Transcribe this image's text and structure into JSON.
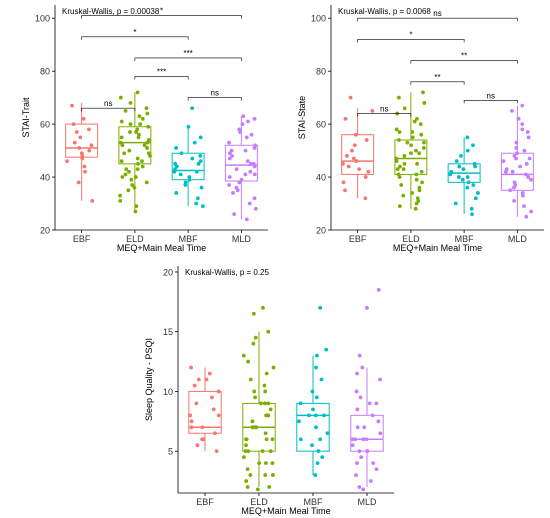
{
  "chart_data": [
    {
      "type": "box",
      "panel": "top-left",
      "annotation": "Kruskal-Wallis, p = 0.00038",
      "xlabel": "MEQ+Main Meal Time",
      "ylabel": "STAI-Trait",
      "categories": [
        "EBF",
        "ELD",
        "MBF",
        "MLD"
      ],
      "colors": [
        "#f8766d",
        "#7cae00",
        "#00bfc4",
        "#c77cff"
      ],
      "ylim": [
        20,
        105
      ],
      "yticks": [
        20,
        40,
        60,
        80,
        100
      ],
      "boxes": [
        {
          "min": 31,
          "q1": 47.5,
          "median": 51,
          "q3": 60,
          "max": 68
        },
        {
          "min": 27,
          "q1": 45,
          "median": 53,
          "q3": 59,
          "max": 72
        },
        {
          "min": 29,
          "q1": 39,
          "median": 42.5,
          "q3": 49,
          "max": 59
        },
        {
          "min": 24,
          "q1": 38.5,
          "median": 44.5,
          "q3": 52,
          "max": 63
        }
      ],
      "points": [
        [
          67,
          58,
          62,
          55,
          53,
          52,
          50,
          49,
          48,
          47,
          46,
          44,
          42,
          38,
          31,
          57,
          51,
          60
        ],
        [
          72,
          70,
          68,
          66,
          65,
          64,
          63,
          62,
          61,
          60,
          59,
          58,
          57,
          56,
          55,
          54,
          53,
          53,
          52,
          51,
          50,
          49,
          48,
          47,
          46,
          45,
          44,
          43,
          42,
          41,
          40,
          39,
          38,
          37,
          35,
          33,
          31,
          29,
          27,
          60,
          57,
          55,
          52,
          49,
          46,
          43,
          40,
          36
        ],
        [
          66,
          59,
          55,
          53,
          51,
          49,
          48,
          47,
          46,
          45,
          44,
          43,
          42,
          41,
          40,
          39,
          38,
          37,
          36,
          34,
          32,
          30,
          29,
          42,
          45
        ],
        [
          63,
          62,
          61,
          60,
          58,
          56,
          55,
          53,
          52,
          51,
          50,
          49,
          48,
          47,
          46,
          45,
          44,
          43,
          42,
          41,
          40,
          39,
          38,
          37,
          36,
          35,
          34,
          32,
          30,
          28,
          26,
          24,
          57,
          50,
          45,
          41
        ]
      ],
      "significance": [
        {
          "from": 0,
          "to": 1,
          "label": "ns",
          "y": 66
        },
        {
          "from": 0,
          "to": 3,
          "label": "*",
          "y": 101
        },
        {
          "from": 0,
          "to": 2,
          "label": "*",
          "y": 93
        },
        {
          "from": 1,
          "to": 3,
          "label": "***",
          "y": 85
        },
        {
          "from": 1,
          "to": 2,
          "label": "***",
          "y": 78
        },
        {
          "from": 2,
          "to": 3,
          "label": "ns",
          "y": 70
        }
      ]
    },
    {
      "type": "box",
      "panel": "top-right",
      "annotation": "Kruskal-Wallis, p = 0.0068",
      "xlabel": "MEQ+Main Meal Time",
      "ylabel": "STAI-State",
      "categories": [
        "EBF",
        "ELD",
        "MBF",
        "MLD"
      ],
      "colors": [
        "#f8766d",
        "#7cae00",
        "#00bfc4",
        "#c77cff"
      ],
      "ylim": [
        20,
        105
      ],
      "yticks": [
        20,
        40,
        60,
        80,
        100
      ],
      "boxes": [
        {
          "min": 32,
          "q1": 41,
          "median": 46,
          "q3": 56,
          "max": 66
        },
        {
          "min": 28,
          "q1": 41,
          "median": 47,
          "q3": 54,
          "max": 72
        },
        {
          "min": 26,
          "q1": 38,
          "median": 41.5,
          "q3": 45,
          "max": 55
        },
        {
          "min": 25,
          "q1": 35,
          "median": 41,
          "q3": 49,
          "max": 67
        }
      ],
      "points": [
        [
          70,
          65,
          62,
          56,
          54,
          52,
          50,
          48,
          47,
          46,
          45,
          44,
          43,
          42,
          40,
          38,
          35,
          32
        ],
        [
          72,
          70,
          68,
          66,
          64,
          62,
          60,
          58,
          57,
          56,
          55,
          54,
          53,
          52,
          51,
          50,
          49,
          48,
          47,
          46,
          45,
          44,
          43,
          42,
          41,
          40,
          39,
          38,
          37,
          36,
          35,
          34,
          33,
          32,
          31,
          30,
          29,
          28,
          61,
          57,
          53,
          49,
          45,
          43,
          41
        ],
        [
          55,
          52,
          50,
          48,
          46,
          45,
          44,
          43,
          42,
          41,
          40,
          39,
          38,
          37,
          36,
          34,
          32,
          30,
          28,
          26,
          44,
          40
        ],
        [
          67,
          65,
          62,
          60,
          57,
          55,
          53,
          51,
          50,
          49,
          48,
          47,
          46,
          45,
          44,
          43,
          42,
          41,
          40,
          39,
          38,
          37,
          36,
          35,
          34,
          33,
          31,
          29,
          27,
          25,
          58,
          47,
          42
        ]
      ],
      "significance": [
        {
          "from": 0,
          "to": 1,
          "label": "ns",
          "y": 64
        },
        {
          "from": 0,
          "to": 3,
          "label": "ns",
          "y": 100
        },
        {
          "from": 0,
          "to": 2,
          "label": "*",
          "y": 92
        },
        {
          "from": 1,
          "to": 3,
          "label": "**",
          "y": 84
        },
        {
          "from": 1,
          "to": 2,
          "label": "**",
          "y": 76
        },
        {
          "from": 2,
          "to": 3,
          "label": "ns",
          "y": 69
        }
      ]
    },
    {
      "type": "box",
      "panel": "bottom",
      "annotation": "Kruskal-Wallis, p = 0.25",
      "xlabel": "MEQ+Main Meal Time",
      "ylabel": "Sleep Quality - PSQI",
      "categories": [
        "EBF",
        "ELD",
        "MBF",
        "MLD"
      ],
      "colors": [
        "#f8766d",
        "#7cae00",
        "#00bfc4",
        "#c77cff"
      ],
      "ylim": [
        1.5,
        20.5
      ],
      "yticks": [
        5,
        10,
        15,
        20
      ],
      "boxes": [
        {
          "min": 5,
          "q1": 6.5,
          "median": 7,
          "q3": 10,
          "max": 12
        },
        {
          "min": 2,
          "q1": 5,
          "median": 7,
          "q3": 9,
          "max": 15
        },
        {
          "min": 3,
          "q1": 5,
          "median": 8,
          "q3": 9,
          "max": 13
        },
        {
          "min": 2,
          "q1": 5,
          "median": 6,
          "q3": 8,
          "max": 12
        }
      ],
      "points": [
        [
          12,
          11.5,
          11,
          10.5,
          10,
          9.5,
          9,
          8.5,
          8,
          7.5,
          7,
          7,
          6.5,
          6,
          6,
          5.5,
          5,
          11,
          8
        ],
        [
          17,
          16.5,
          15,
          14.5,
          14,
          13,
          12.5,
          12,
          11.5,
          11,
          10.5,
          10,
          9.5,
          9,
          9,
          8.5,
          8,
          8,
          7.5,
          7,
          7,
          7,
          6.5,
          6,
          6,
          6,
          5.5,
          5,
          5,
          5,
          4.5,
          4,
          4,
          3.5,
          3,
          3,
          2.5,
          2,
          2,
          1.8,
          10,
          9,
          8,
          7,
          6,
          5,
          4,
          3
        ],
        [
          17,
          13.5,
          13,
          12,
          11,
          10,
          9.5,
          9,
          8.5,
          8,
          8,
          7.5,
          7,
          6.5,
          6,
          5.5,
          5,
          4.5,
          4,
          3,
          8,
          6
        ],
        [
          18.5,
          17,
          13,
          12,
          11.5,
          11,
          10,
          9.5,
          9,
          8.5,
          8,
          7.5,
          7,
          6.5,
          6,
          6,
          6,
          5.5,
          5,
          5,
          4.5,
          4,
          3.5,
          3,
          2.5,
          2,
          1.8,
          7,
          6,
          5,
          9,
          4
        ]
      ],
      "significance": []
    }
  ]
}
